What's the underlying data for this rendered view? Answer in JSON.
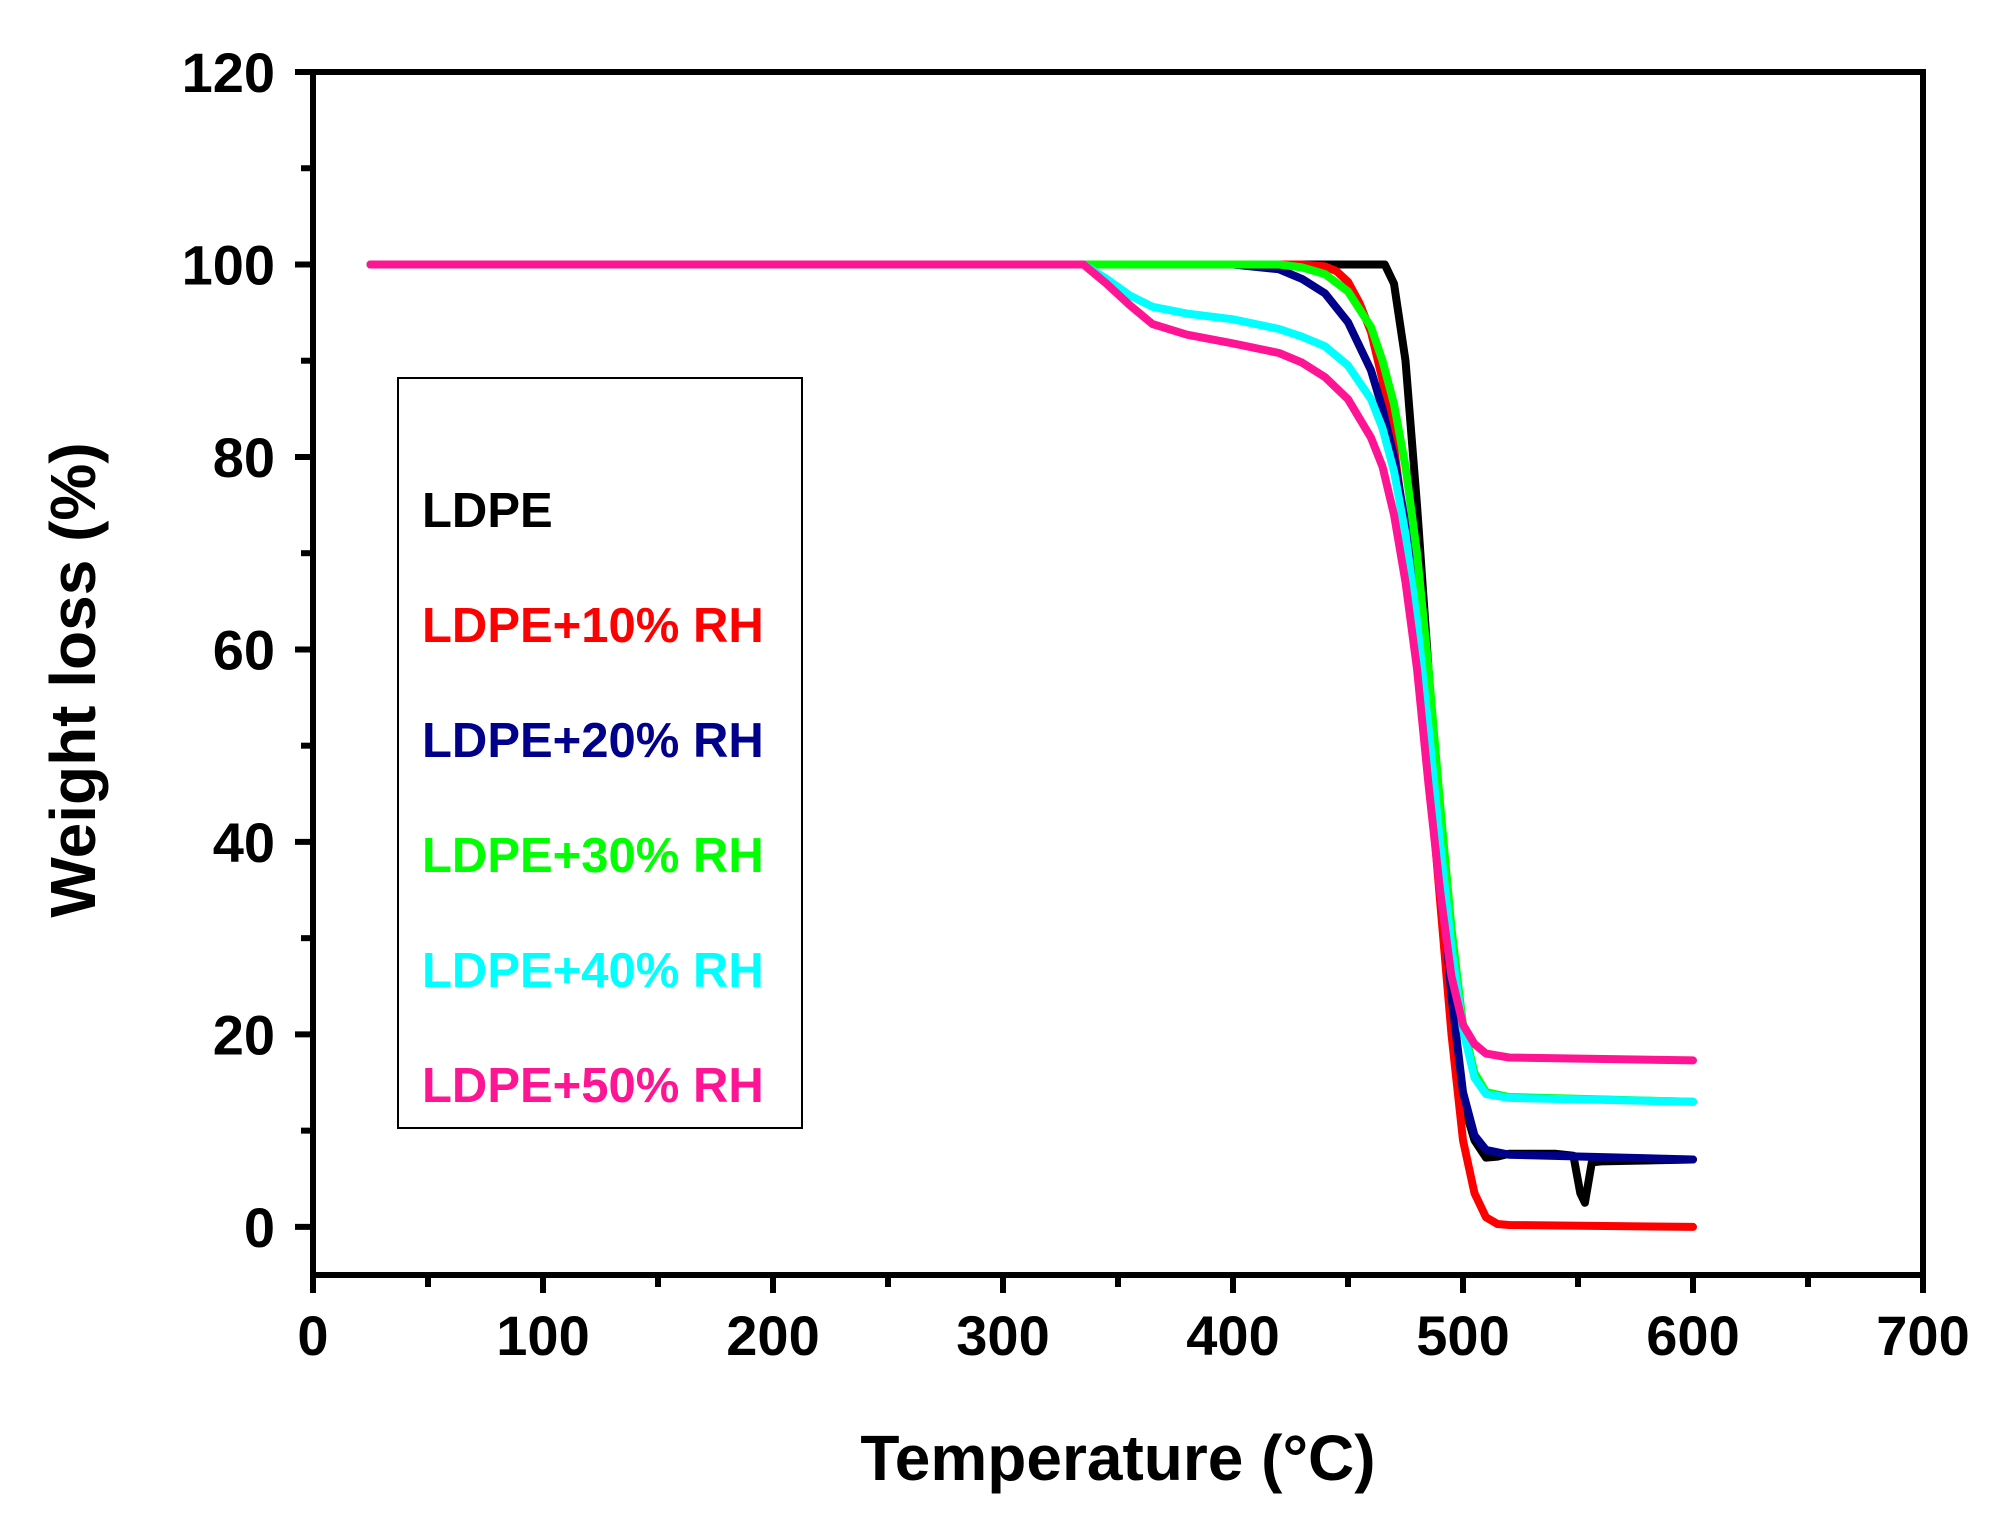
{
  "chart_data": {
    "type": "line",
    "title": "",
    "xlabel": "Temperature (°C)",
    "ylabel": "Weight loss (%)",
    "xlim": [
      0,
      700
    ],
    "ylim": [
      -5,
      120
    ],
    "xticks": [
      0,
      100,
      200,
      300,
      400,
      500,
      600,
      700
    ],
    "yticks": [
      0,
      20,
      40,
      60,
      80,
      100,
      120
    ],
    "grid": false,
    "legend_position": "left",
    "series": [
      {
        "name": "LDPE",
        "color": "#000000",
        "x": [
          25,
          460,
          466,
          470,
          475,
          480,
          485,
          490,
          495,
          500,
          505,
          510,
          515,
          520,
          540,
          548,
          551,
          553,
          556,
          560,
          600
        ],
        "y": [
          100,
          100,
          100,
          98,
          90,
          75,
          58,
          40,
          24,
          13,
          9,
          7.2,
          7.3,
          7.6,
          7.6,
          7.4,
          3.5,
          2.5,
          6.7,
          6.8,
          7
        ]
      },
      {
        "name": "LDPE+10% RH",
        "color": "#ff0000",
        "x": [
          25,
          430,
          440,
          445,
          450,
          455,
          460,
          465,
          470,
          475,
          480,
          485,
          490,
          495,
          500,
          505,
          510,
          515,
          520,
          600
        ],
        "y": [
          100,
          100,
          99.8,
          99.3,
          98.2,
          96,
          93,
          88,
          81,
          72,
          61,
          48,
          34,
          20,
          9,
          3.5,
          1,
          0.3,
          0.2,
          0
        ]
      },
      {
        "name": "LDPE+20% RH",
        "color": "#00008b",
        "x": [
          25,
          400,
          420,
          430,
          440,
          450,
          460,
          465,
          470,
          475,
          480,
          485,
          490,
          495,
          500,
          505,
          510,
          520,
          600
        ],
        "y": [
          100,
          100,
          99.5,
          98.5,
          97,
          94,
          89,
          85,
          80,
          73,
          64,
          52,
          38,
          24,
          14,
          9.5,
          8,
          7.5,
          7
        ]
      },
      {
        "name": "LDPE+30% RH",
        "color": "#00ff00",
        "x": [
          25,
          420,
          430,
          440,
          450,
          460,
          465,
          470,
          475,
          480,
          485,
          490,
          495,
          500,
          505,
          510,
          520,
          600
        ],
        "y": [
          100,
          100,
          99.7,
          99,
          97.2,
          93.5,
          90,
          85.5,
          79,
          70,
          58,
          44,
          31,
          21,
          16,
          14,
          13.5,
          13
        ]
      },
      {
        "name": "LDPE+40% RH",
        "color": "#00ffff",
        "x": [
          25,
          335,
          345,
          355,
          365,
          380,
          400,
          420,
          430,
          440,
          450,
          460,
          465,
          470,
          475,
          480,
          485,
          490,
          495,
          500,
          505,
          510,
          520,
          600
        ],
        "y": [
          100,
          100,
          98.5,
          96.8,
          95.6,
          94.9,
          94.3,
          93.3,
          92.5,
          91.5,
          89.5,
          86,
          83,
          78.5,
          72,
          63,
          52,
          40,
          29,
          20.5,
          15.5,
          13.8,
          13.4,
          13
        ]
      },
      {
        "name": "LDPE+50% RH",
        "color": "#ff1493",
        "x": [
          25,
          335,
          345,
          355,
          365,
          380,
          400,
          420,
          430,
          440,
          450,
          460,
          465,
          470,
          475,
          480,
          485,
          490,
          495,
          500,
          505,
          510,
          520,
          600
        ],
        "y": [
          100,
          100,
          98,
          95.8,
          93.8,
          92.7,
          91.8,
          90.8,
          89.8,
          88.3,
          86,
          82,
          79,
          74,
          67,
          58,
          46,
          35,
          26,
          21,
          19,
          18,
          17.6,
          17.3
        ]
      }
    ]
  }
}
